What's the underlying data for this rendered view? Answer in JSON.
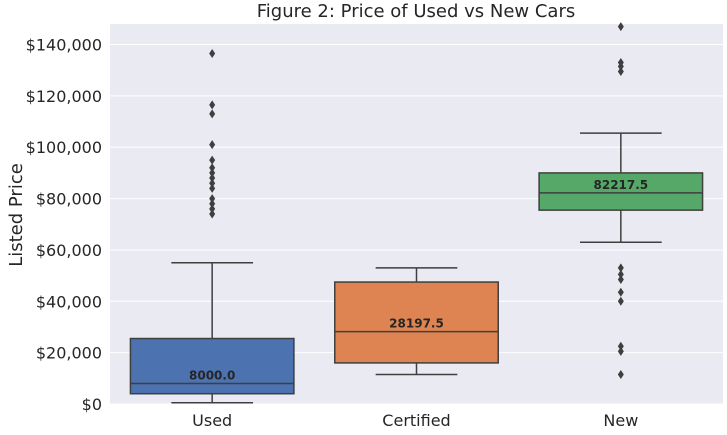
{
  "chart_data": {
    "type": "box",
    "title": "Figure 2: Price of Used vs New Cars",
    "xlabel": "",
    "ylabel": "Listed Price",
    "ylim": [
      0,
      148000
    ],
    "yticks": [
      0,
      20000,
      40000,
      60000,
      80000,
      100000,
      120000,
      140000
    ],
    "ytick_labels": [
      "$0",
      "$20,000",
      "$40,000",
      "$60,000",
      "$80,000",
      "$100,000",
      "$120,000",
      "$140,000"
    ],
    "grid": true,
    "categories": [
      "Used",
      "Certified",
      "New"
    ],
    "colors": [
      "#4c72b0",
      "#dd8452",
      "#55a868"
    ],
    "background": "#eaeaf2",
    "boxes": [
      {
        "category": "Used",
        "whisker_low": 500,
        "q1": 4000,
        "median": 8000,
        "q3": 25500,
        "whisker_high": 55000,
        "median_label": "8000.0",
        "outliers": [
          74000,
          76000,
          78000,
          80000,
          84000,
          86000,
          88000,
          90000,
          92000,
          95000,
          101000,
          113000,
          116500,
          136500
        ]
      },
      {
        "category": "Certified",
        "whisker_low": 11500,
        "q1": 16000,
        "median": 28197.5,
        "q3": 47500,
        "whisker_high": 53000,
        "median_label": "28197.5",
        "outliers": []
      },
      {
        "category": "New",
        "whisker_low": 63000,
        "q1": 75500,
        "median": 82217.5,
        "q3": 90000,
        "whisker_high": 105500,
        "median_label": "82217.5",
        "outliers": [
          147000,
          133000,
          131500,
          129500,
          53000,
          50500,
          48500,
          43500,
          40000,
          22500,
          20500,
          11500
        ]
      }
    ]
  }
}
